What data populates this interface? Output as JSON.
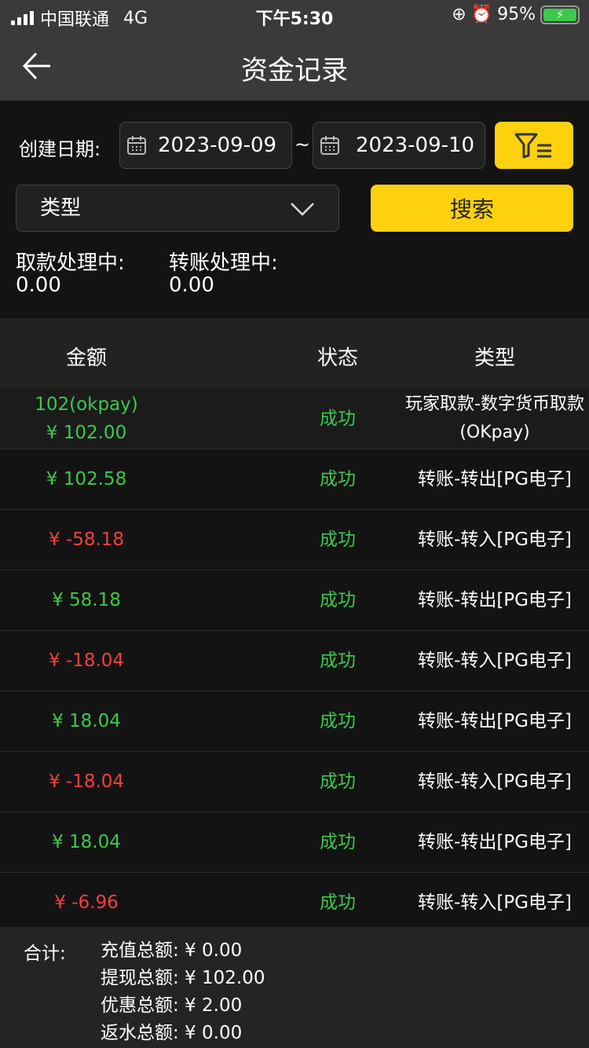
{
  "status_bar": {
    "carrier": "中国联通",
    "network": "4G",
    "time": "下午5:30",
    "battery": "95%"
  },
  "header": {
    "title": "资金记录"
  },
  "filter": {
    "date_label": "创建日期:",
    "start_date": "2023-09-09",
    "separator": "~",
    "end_date": "2023-09-10",
    "type_select": "类型",
    "search_label": "搜索"
  },
  "pending": {
    "withdraw_label": "取款处理中:",
    "withdraw_value": "0.00",
    "transfer_label": "转账处理中:",
    "transfer_value": "0.00"
  },
  "table": {
    "headers": [
      "金额",
      "状态",
      "类型"
    ],
    "rows": [
      {
        "note": "102(okpay)",
        "amount": "¥ 102.00",
        "color": "green",
        "status": "成功",
        "type": "玩家取款-数字货币取款 (OKpay)"
      },
      {
        "amount": "¥ 102.58",
        "color": "green",
        "status": "成功",
        "type": "转账-转出[PG电子]"
      },
      {
        "amount": "¥ -58.18",
        "color": "red",
        "status": "成功",
        "type": "转账-转入[PG电子]"
      },
      {
        "amount": "¥ 58.18",
        "color": "green",
        "status": "成功",
        "type": "转账-转出[PG电子]"
      },
      {
        "amount": "¥ -18.04",
        "color": "red",
        "status": "成功",
        "type": "转账-转入[PG电子]"
      },
      {
        "amount": "¥ 18.04",
        "color": "green",
        "status": "成功",
        "type": "转账-转出[PG电子]"
      },
      {
        "amount": "¥ -18.04",
        "color": "red",
        "status": "成功",
        "type": "转账-转入[PG电子]"
      },
      {
        "amount": "¥ 18.04",
        "color": "green",
        "status": "成功",
        "type": "转账-转出[PG电子]"
      },
      {
        "amount": "¥ -6.96",
        "color": "red",
        "status": "成功",
        "type": "转账-转入[PG电子]"
      }
    ]
  },
  "summary": {
    "label": "合计:",
    "lines": [
      "充值总额:  ¥ 0.00",
      "提现总额:  ¥ 102.00",
      "优惠总额:  ¥ 2.00",
      "返水总额:  ¥ 0.00"
    ]
  },
  "colors": {
    "accent": "#fdd10e",
    "positive": "#3cc94b",
    "negative": "#f0413c"
  }
}
